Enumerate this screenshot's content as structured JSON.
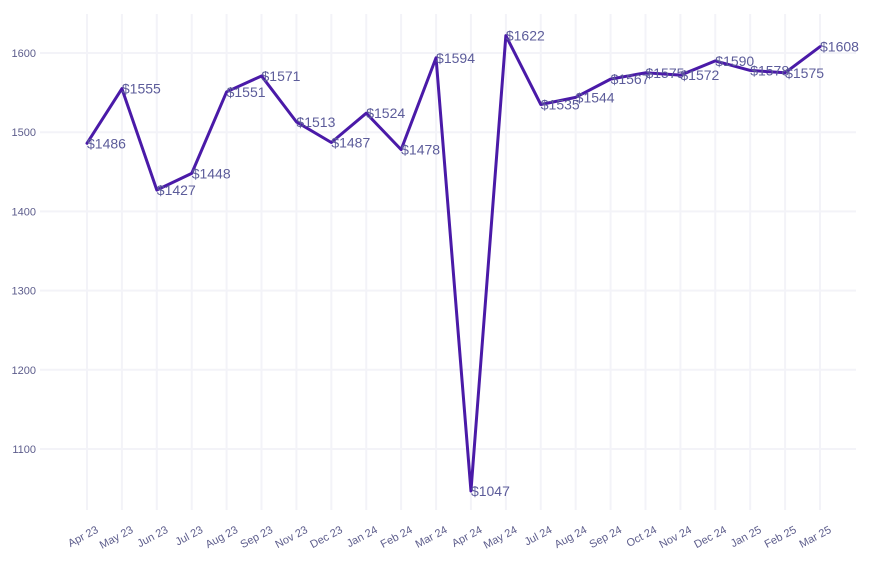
{
  "chart_data": {
    "type": "line",
    "categories": [
      "Apr 23",
      "May 23",
      "Jun 23",
      "Jul 23",
      "Aug 23",
      "Sep 23",
      "Nov 23",
      "Dec 23",
      "Jan 24",
      "Feb 24",
      "Mar 24",
      "Apr 24",
      "May 24",
      "Jul 24",
      "Aug 24",
      "Sep 24",
      "Oct 24",
      "Nov 24",
      "Dec 24",
      "Jan 25",
      "Feb 25",
      "Mar 25"
    ],
    "series": [
      {
        "values": [
          1486,
          1555,
          1427,
          1448,
          1551,
          1571,
          1513,
          1487,
          1524,
          1478,
          1594,
          1047,
          1622,
          1535,
          1544,
          1567,
          1575,
          1572,
          1590,
          1578,
          1575,
          1608
        ]
      }
    ],
    "data_labels": [
      "$1486",
      "$1555",
      "$1427",
      "$1448",
      "$1551",
      "$1571",
      "$1513",
      "$1487",
      "$1524",
      "$1478",
      "$1594",
      "$1047",
      "$1622",
      "$1535",
      "$1544",
      "$1567",
      "$1575",
      "$1572",
      "$1590",
      "$1578",
      "$1575",
      "$1608"
    ],
    "y_ticks": [
      1100,
      1200,
      1300,
      1400,
      1500,
      1600
    ],
    "ylim": [
      1020,
      1660
    ],
    "grid": true,
    "legend": "none",
    "colors": {
      "line": "#4a1aa8",
      "grid": "#f3f3f8",
      "tick": "#5d5d8c",
      "label": "#5c5c9a"
    }
  }
}
